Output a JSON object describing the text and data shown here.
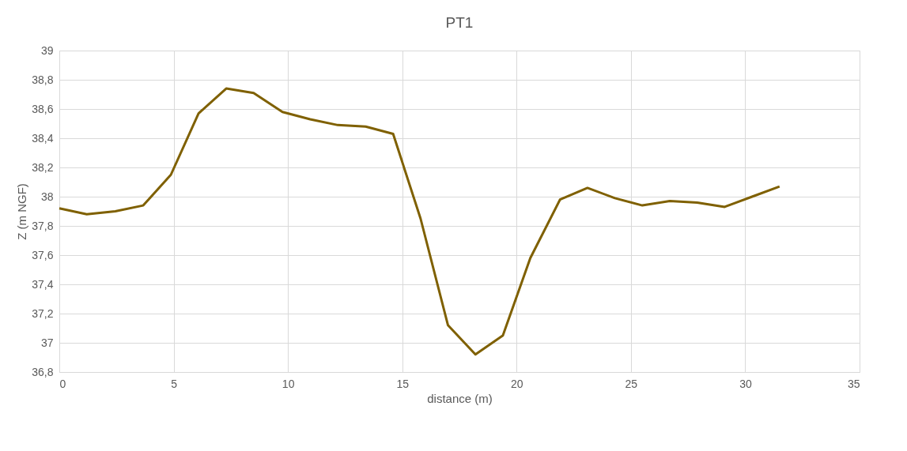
{
  "chart_data": {
    "type": "line",
    "title": "PT1",
    "xlabel": "distance (m)",
    "ylabel": "Z (m NGF)",
    "x": [
      0,
      1.2,
      2.45,
      3.67,
      4.88,
      6.09,
      7.3,
      8.5,
      9.76,
      10.97,
      12.18,
      13.4,
      14.6,
      15.8,
      17.0,
      18.2,
      19.4,
      20.6,
      21.9,
      23.1,
      24.3,
      25.5,
      26.7,
      27.9,
      29.1,
      30.3,
      31.5
    ],
    "series": [
      {
        "color": "#7f6000",
        "values": [
          37.92,
          37.88,
          37.9,
          37.94,
          38.15,
          38.57,
          38.74,
          38.71,
          38.58,
          38.53,
          38.49,
          38.48,
          38.43,
          37.85,
          37.12,
          36.92,
          37.05,
          37.58,
          37.98,
          38.06,
          37.99,
          37.94,
          37.97,
          37.96,
          37.93,
          38.0,
          38.07
        ]
      }
    ],
    "xlim": [
      0,
      35
    ],
    "xticks": [
      0,
      5,
      10,
      15,
      20,
      25,
      30,
      35
    ],
    "ylim": [
      36.8,
      39
    ],
    "yticks": [
      {
        "value": 36.8,
        "label": "36,8"
      },
      37,
      {
        "value": 37.2,
        "label": "37,2"
      },
      {
        "value": 37.4,
        "label": "37,4"
      },
      {
        "value": 37.6,
        "label": "37,6"
      },
      {
        "value": 37.8,
        "label": "37,8"
      },
      38,
      {
        "value": 38.2,
        "label": "38,2"
      },
      {
        "value": 38.4,
        "label": "38,4"
      },
      {
        "value": 38.6,
        "label": "38,6"
      },
      {
        "value": 38.8,
        "label": "38,8"
      },
      39
    ],
    "grid": true,
    "legend": false,
    "marker": "none",
    "line_style": "solid"
  }
}
